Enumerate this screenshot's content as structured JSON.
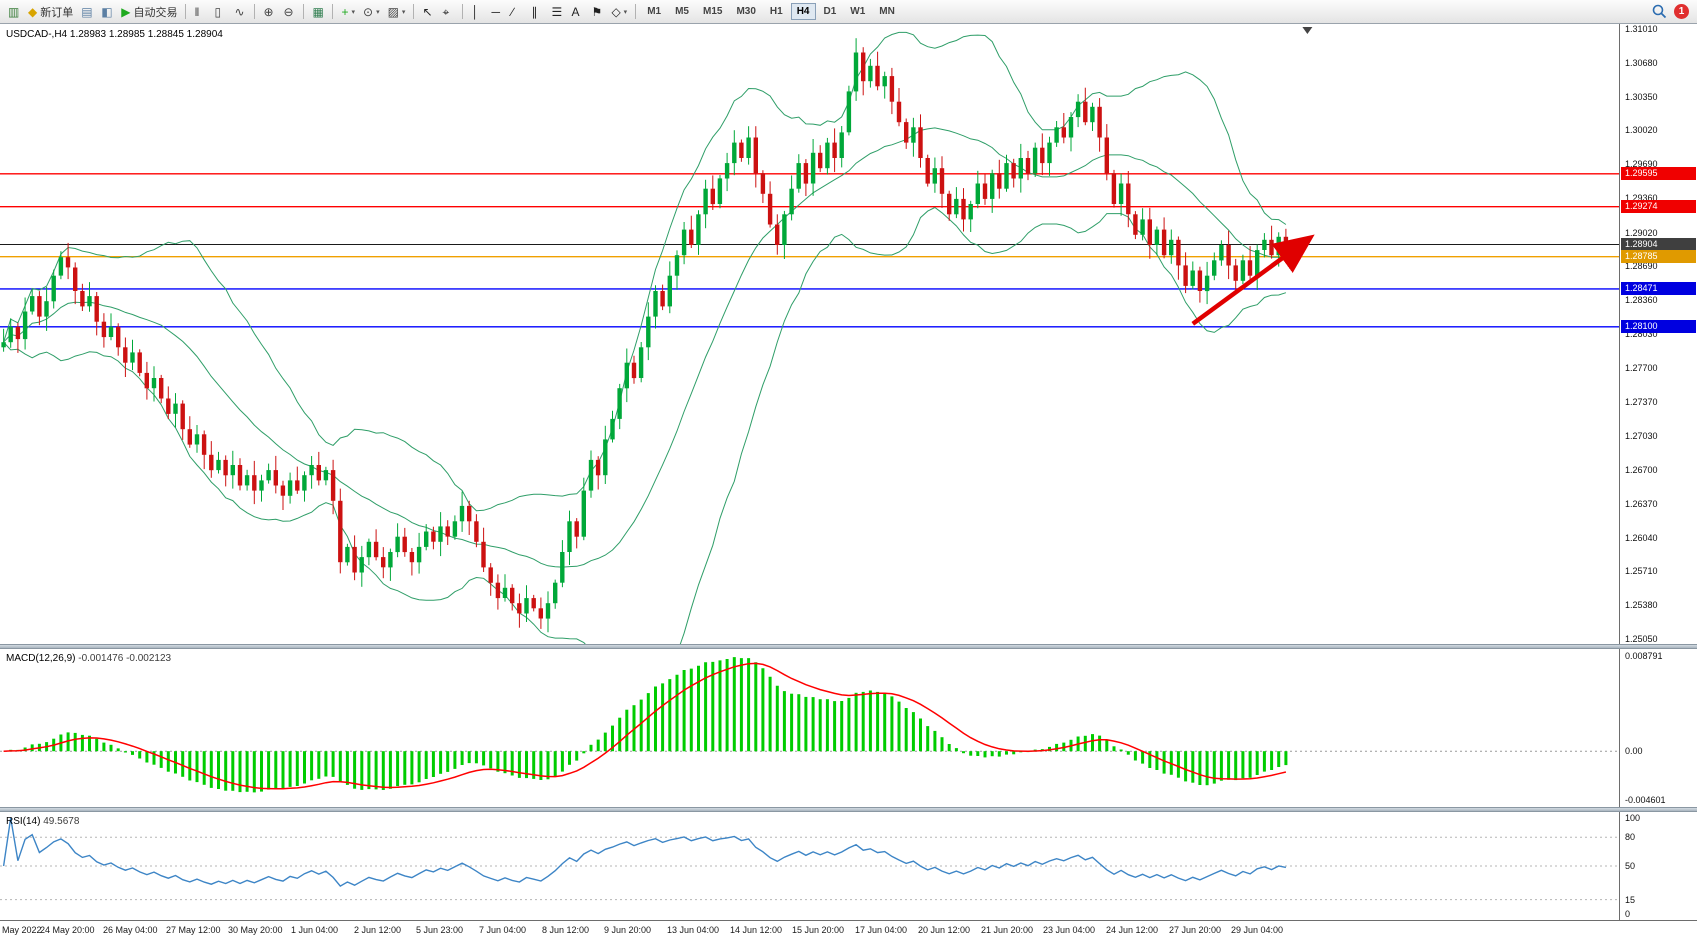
{
  "toolbar": {
    "groups": [
      [
        {
          "name": "new-chart",
          "glyph": "▥",
          "color": "#3a7d3a"
        },
        {
          "name": "new-order",
          "glyph": "◆",
          "color": "#d8a400",
          "label": "新订单"
        },
        {
          "name": "market-watch",
          "glyph": "▤",
          "color": "#5c7fa3"
        },
        {
          "name": "navigator",
          "glyph": "◧",
          "color": "#5c7fa3"
        },
        {
          "name": "auto-trading",
          "glyph": "▶",
          "color": "#1faa1f",
          "label": "自动交易"
        }
      ],
      [
        {
          "name": "bar-chart-mode",
          "glyph": "‖",
          "color": "#444"
        },
        {
          "name": "candlestick-mode",
          "glyph": "▯",
          "color": "#444"
        },
        {
          "name": "line-chart-mode",
          "glyph": "∿",
          "color": "#444"
        }
      ],
      [
        {
          "name": "zoom-in",
          "glyph": "⊕",
          "color": "#444"
        },
        {
          "name": "zoom-out",
          "glyph": "⊖",
          "color": "#444"
        }
      ],
      [
        {
          "name": "tile-windows",
          "glyph": "▦",
          "color": "#2f7d4f"
        }
      ],
      [
        {
          "name": "indicators",
          "glyph": "+",
          "color": "#1faa1f",
          "dropdown": true
        },
        {
          "name": "periods",
          "glyph": "⊙",
          "color": "#444",
          "dropdown": true
        },
        {
          "name": "templates",
          "glyph": "▨",
          "color": "#444",
          "dropdown": true
        }
      ],
      [
        {
          "name": "cursor",
          "glyph": "↖",
          "color": "#222"
        },
        {
          "name": "crosshair",
          "glyph": "⌖",
          "color": "#222"
        }
      ],
      [
        {
          "name": "vertical-line-tool",
          "glyph": "│",
          "color": "#222"
        },
        {
          "name": "horizontal-line-tool",
          "glyph": "─",
          "color": "#222"
        },
        {
          "name": "trendline-tool",
          "glyph": "∕",
          "color": "#222"
        },
        {
          "name": "channel-tool",
          "glyph": "∥",
          "color": "#222"
        },
        {
          "name": "fibonacci-tool",
          "glyph": "☰",
          "color": "#222"
        },
        {
          "name": "text-tool",
          "glyph": "A",
          "color": "#222"
        },
        {
          "name": "arrows-tool",
          "glyph": "⚑",
          "color": "#222"
        },
        {
          "name": "shapes-tool",
          "glyph": "◇",
          "color": "#222",
          "dropdown": true
        }
      ]
    ],
    "timeframes": [
      "M1",
      "M5",
      "M15",
      "M30",
      "H1",
      "H4",
      "D1",
      "W1",
      "MN"
    ],
    "active_timeframe": "H4",
    "notification_count": "1"
  },
  "chart": {
    "symbol_label": "USDCAD-,H4",
    "ohlc_text": "1.28983 1.28985 1.28845 1.28904",
    "price_axis": [
      "1.31010",
      "1.30680",
      "1.30350",
      "1.30020",
      "1.29690",
      "1.29360",
      "1.29020",
      "1.28690",
      "1.28360",
      "1.28030",
      "1.27700",
      "1.27370",
      "1.27030",
      "1.26700",
      "1.26370",
      "1.26040",
      "1.25710",
      "1.25380",
      "1.25050"
    ]
  },
  "chart_data": {
    "type": "candlestick",
    "symbol": "USDCAD",
    "timeframe": "H4",
    "title": "USDCAD-,H4 1.28983 1.28985 1.28845 1.28904",
    "ylim": [
      1.2505,
      1.3101
    ],
    "first_open": 1.279,
    "closes": [
      1.2795,
      1.281,
      1.2798,
      1.2825,
      1.284,
      1.282,
      1.2835,
      1.286,
      1.2878,
      1.2868,
      1.2845,
      1.283,
      1.284,
      1.2815,
      1.28,
      1.281,
      1.279,
      1.2775,
      1.2785,
      1.2765,
      1.275,
      1.276,
      1.274,
      1.2725,
      1.2735,
      1.271,
      1.2695,
      1.2705,
      1.2685,
      1.267,
      1.268,
      1.2665,
      1.2675,
      1.2655,
      1.2665,
      1.265,
      1.266,
      1.267,
      1.2655,
      1.2645,
      1.266,
      1.265,
      1.2665,
      1.2675,
      1.266,
      1.267,
      1.264,
      1.258,
      1.2595,
      1.257,
      1.2585,
      1.26,
      1.2585,
      1.2575,
      1.259,
      1.2605,
      1.259,
      1.258,
      1.2595,
      1.261,
      1.26,
      1.2615,
      1.2605,
      1.262,
      1.2635,
      1.262,
      1.26,
      1.2575,
      1.256,
      1.2545,
      1.2555,
      1.254,
      1.253,
      1.2545,
      1.2535,
      1.2525,
      1.254,
      1.256,
      1.259,
      1.262,
      1.2605,
      1.265,
      1.268,
      1.2665,
      1.27,
      1.272,
      1.275,
      1.2775,
      1.276,
      1.279,
      1.282,
      1.2845,
      1.283,
      1.286,
      1.288,
      1.2905,
      1.289,
      1.292,
      1.2945,
      1.293,
      1.2955,
      1.297,
      1.299,
      1.2975,
      1.2995,
      1.296,
      1.294,
      1.291,
      1.289,
      1.292,
      1.2945,
      1.297,
      1.295,
      1.298,
      1.2965,
      1.299,
      1.2975,
      1.3,
      1.304,
      1.3078,
      1.305,
      1.3065,
      1.3045,
      1.3055,
      1.303,
      1.301,
      1.299,
      1.3005,
      1.2975,
      1.295,
      1.2965,
      1.294,
      1.292,
      1.2935,
      1.2915,
      1.293,
      1.295,
      1.2935,
      1.296,
      1.2945,
      1.297,
      1.2955,
      1.2975,
      1.296,
      1.2985,
      1.297,
      1.299,
      1.3005,
      1.2995,
      1.3015,
      1.303,
      1.301,
      1.3025,
      1.2995,
      1.296,
      1.293,
      1.295,
      1.292,
      1.29,
      1.2915,
      1.289,
      1.2905,
      1.288,
      1.2895,
      1.287,
      1.285,
      1.2865,
      1.2845,
      1.286,
      1.2875,
      1.289,
      1.287,
      1.2855,
      1.2875,
      1.286,
      1.2885,
      1.2895,
      1.288,
      1.2898,
      1.28904
    ],
    "x_labels": [
      "May 2022",
      "24 May 20:00",
      "26 May 04:00",
      "27 May 12:00",
      "30 May 20:00",
      "1 Jun 04:00",
      "2 Jun 12:00",
      "5 Jun 23:00",
      "7 Jun 04:00",
      "8 Jun 12:00",
      "9 Jun 20:00",
      "13 Jun 04:00",
      "14 Jun 12:00",
      "15 Jun 20:00",
      "17 Jun 04:00",
      "20 Jun 12:00",
      "21 Jun 20:00",
      "23 Jun 04:00",
      "24 Jun 12:00",
      "27 Jun 20:00",
      "29 Jun 04:00"
    ],
    "colors": {
      "up": "#00a839",
      "down": "#cc1111",
      "bollinger": "#2f9e68"
    },
    "overlays": {
      "bollinger": {
        "period": 20,
        "deviation": 2
      },
      "levels": [
        {
          "name": "resistance-line-1",
          "price": 1.29595,
          "color": "#ff0000",
          "badge_bg": "#f00000"
        },
        {
          "name": "resistance-line-2",
          "price": 1.29274,
          "color": "#ff0000",
          "badge_bg": "#f00000"
        },
        {
          "name": "bid-price-line",
          "price": 1.28904,
          "color": "#1a1a1a",
          "badge_bg": "#3f3f3f"
        },
        {
          "name": "pivot-line",
          "price": 1.28785,
          "color": "#f0a000",
          "badge_bg": "#e09a00"
        },
        {
          "name": "support-line-1",
          "price": 1.28471,
          "color": "#0000ff",
          "badge_bg": "#0000e0"
        },
        {
          "name": "support-line-2",
          "price": 1.281,
          "color": "#0000ff",
          "badge_bg": "#0000e0"
        }
      ],
      "trend_arrow": {
        "from_index": 166,
        "from_price": 1.2813,
        "to_index": 182,
        "to_price": 1.2895,
        "color": "#e00000"
      },
      "shift_marker_index": 182
    },
    "macd": {
      "label": "MACD(12,26,9)",
      "value_main": "-0.001476",
      "value_signal": "-0.002123",
      "ylim": [
        -0.004601,
        0.008791
      ],
      "axis_labels": [
        "0.008791",
        "0.00",
        "-0.004601"
      ],
      "histogram_color": "#00cc00",
      "signal_color": "#ff0000"
    },
    "rsi": {
      "label": "RSI(14)",
      "value": "49.5678",
      "ylim": [
        0,
        100
      ],
      "levels": [
        80,
        50,
        15
      ],
      "axis_labels": [
        "100",
        "80",
        "50",
        "15",
        "0"
      ],
      "color": "#3d85c6"
    }
  }
}
